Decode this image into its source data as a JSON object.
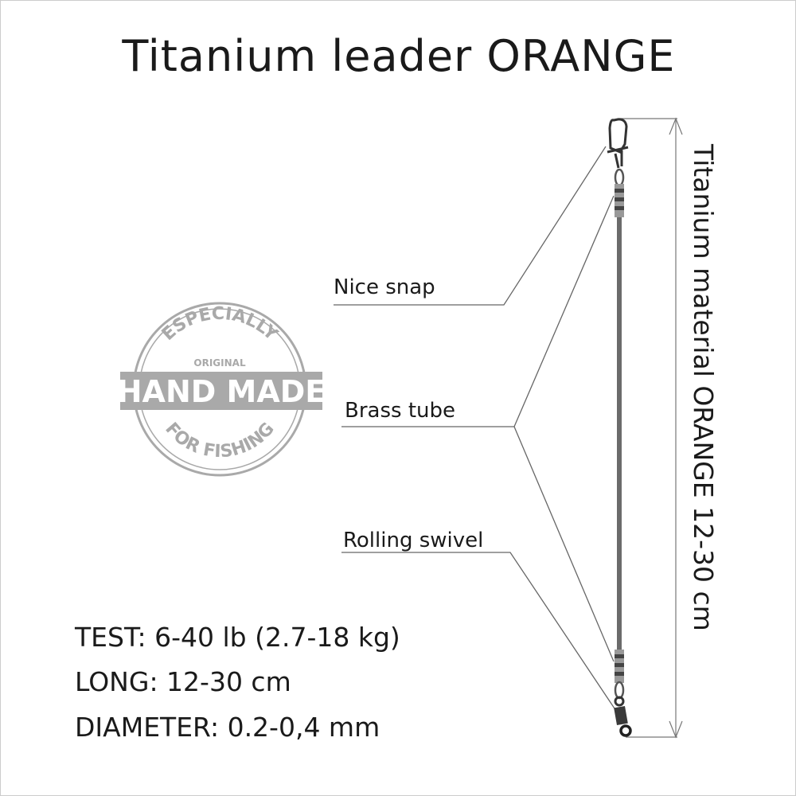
{
  "title": "Titanium leader ORANGE",
  "labels": {
    "snap": "Nice snap",
    "tube": "Brass tube",
    "swivel": "Rolling swivel"
  },
  "dimension_label": "Titanium material ORANGE 12-30 cm",
  "specs": {
    "test": "TEST: 6-40 lb (2.7-18 kg)",
    "long": "LONG: 12-30 cm",
    "diameter": "DIAMETER: 0.2-0,4 mm"
  },
  "stamp": {
    "top": "ESPECIALLY",
    "inner": "ORIGINAL",
    "band": "HAND MADE",
    "bottom": "FOR FISHING",
    "color": "#a9a9a9"
  },
  "colors": {
    "line": "#555555",
    "wire": "#6b6b6b",
    "text": "#1a1a1a"
  }
}
